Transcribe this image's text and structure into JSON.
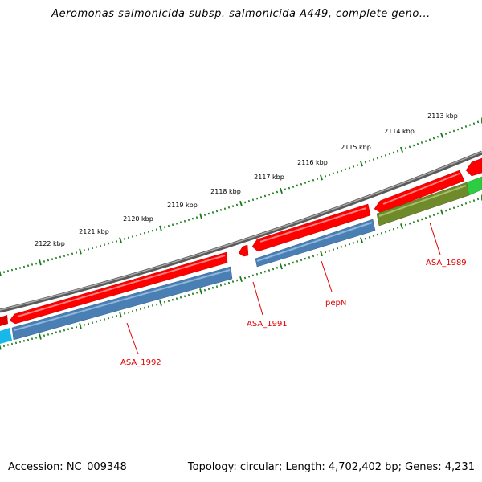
{
  "header": {
    "title": "Aeromonas salmonicida subsp. salmonicida A449, complete geno..."
  },
  "footer": {
    "accession": "Accession: NC_009348",
    "summary": "Topology: circular; Length: 4,702,402 bp; Genes: 4,231"
  },
  "colors": {
    "backbone": "#808080",
    "feature_red": "#ff0000",
    "cds_blue": "#4a7fb4",
    "cds_olive": "#6e8a2a",
    "cds_green": "#2ecc40",
    "cds_cyan": "#18b8e8",
    "tick_green": "#1a7a1a",
    "label_red": "#e00000"
  },
  "ruler": {
    "labels": [
      "2113 kbp",
      "2114 kbp",
      "2115 kbp",
      "2116 kbp",
      "2117 kbp",
      "2118 kbp",
      "2119 kbp",
      "2120 kbp",
      "2121 kbp",
      "2122 kbp"
    ]
  },
  "features": {
    "labels": [
      "ASA_1989",
      "pepN",
      "ASA_1991",
      "ASA_1992"
    ]
  }
}
